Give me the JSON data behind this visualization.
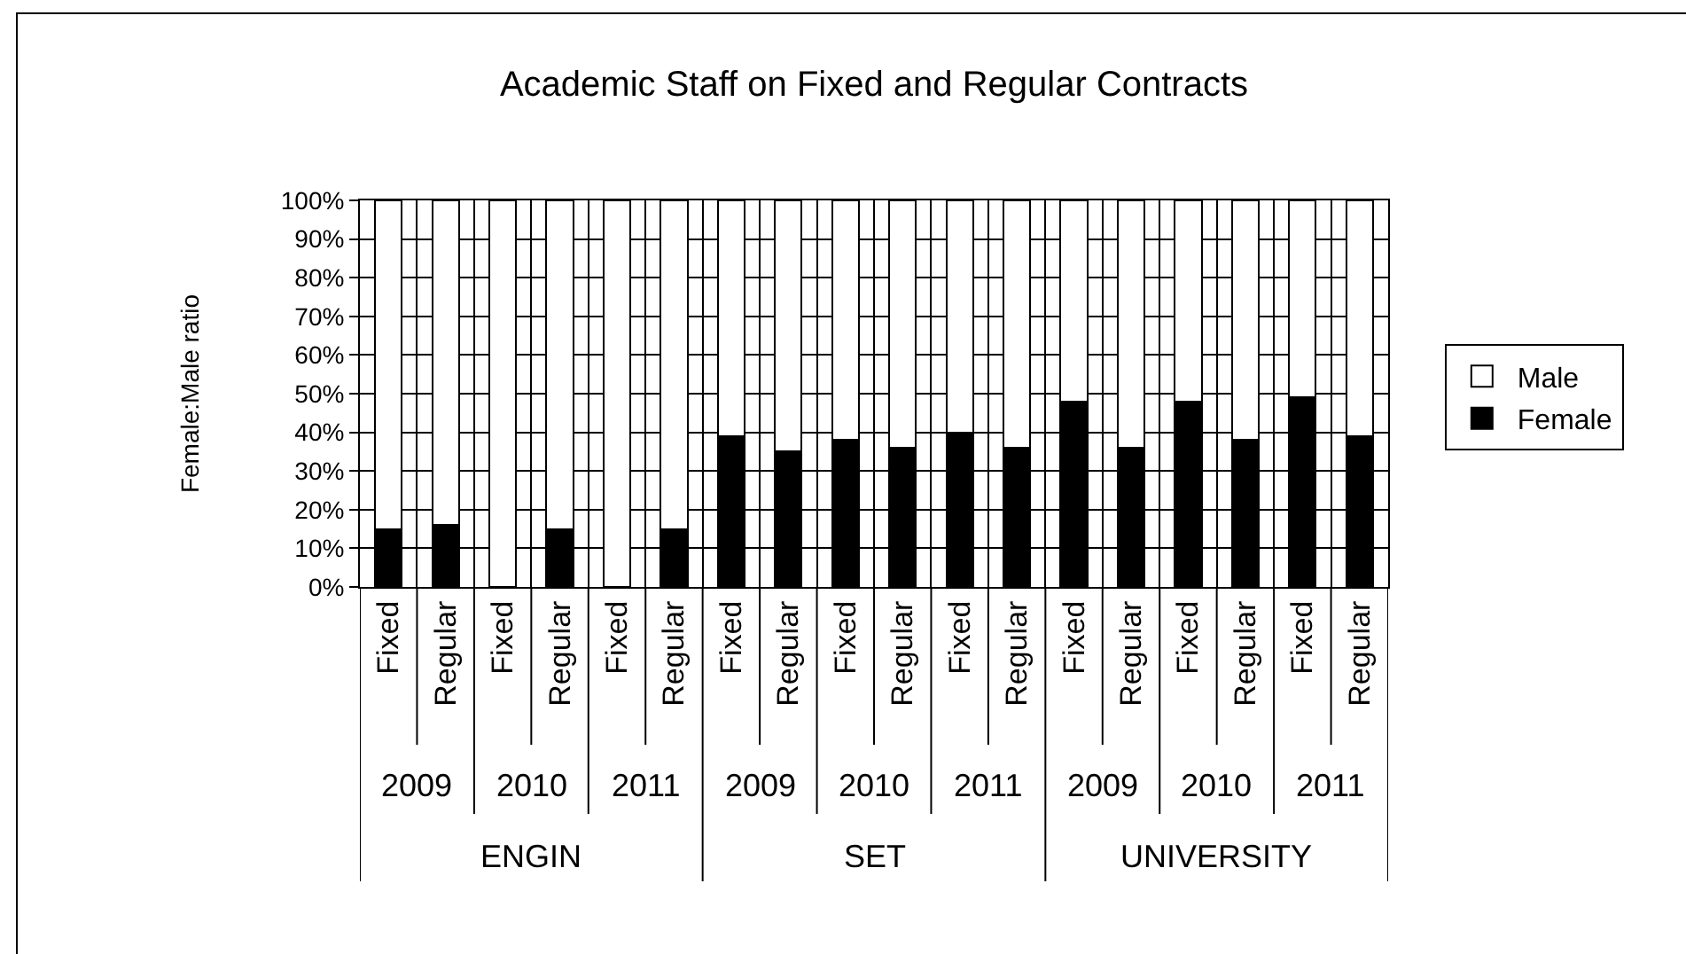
{
  "chart_data": {
    "type": "bar",
    "stacked": true,
    "title": "Academic Staff on Fixed and Regular Contracts",
    "ylabel": "Female:Male ratio",
    "categories": [
      "Fixed",
      "Regular",
      "Fixed",
      "Regular",
      "Fixed",
      "Regular",
      "Fixed",
      "Regular",
      "Fixed",
      "Regular",
      "Fixed",
      "Regular",
      "Fixed",
      "Regular",
      "Fixed",
      "Regular",
      "Fixed",
      "Regular"
    ],
    "annotations": [
      "2009",
      "2010",
      "2011",
      "2009",
      "2010",
      "2011",
      "2009",
      "2010",
      "2011",
      "ENGIN",
      "SET",
      "UNIVERSITY"
    ],
    "series": [
      {
        "name": "Female",
        "color": "#000000",
        "values": [
          15,
          16,
          0,
          15,
          0,
          15,
          39,
          35,
          38,
          36,
          40,
          36,
          48,
          36,
          48,
          38,
          49,
          39
        ]
      },
      {
        "name": "Male",
        "color": "#ffffff",
        "values": [
          85,
          84,
          100,
          85,
          100,
          85,
          61,
          65,
          62,
          64,
          60,
          64,
          52,
          64,
          52,
          62,
          51,
          61
        ]
      }
    ],
    "ylim": [
      0,
      100
    ],
    "yticks": [
      {
        "value": 0,
        "label": "0%"
      },
      {
        "value": 10,
        "label": "10%"
      },
      {
        "value": 20,
        "label": "20%"
      },
      {
        "value": 30,
        "label": "30%"
      },
      {
        "value": 40,
        "label": "40%"
      },
      {
        "value": 50,
        "label": "50%"
      },
      {
        "value": 60,
        "label": "60%"
      },
      {
        "value": 70,
        "label": "70%"
      },
      {
        "value": 80,
        "label": "80%"
      },
      {
        "value": 90,
        "label": "90%"
      },
      {
        "value": 100,
        "label": "100%"
      }
    ],
    "grid": true,
    "legend": "right"
  }
}
